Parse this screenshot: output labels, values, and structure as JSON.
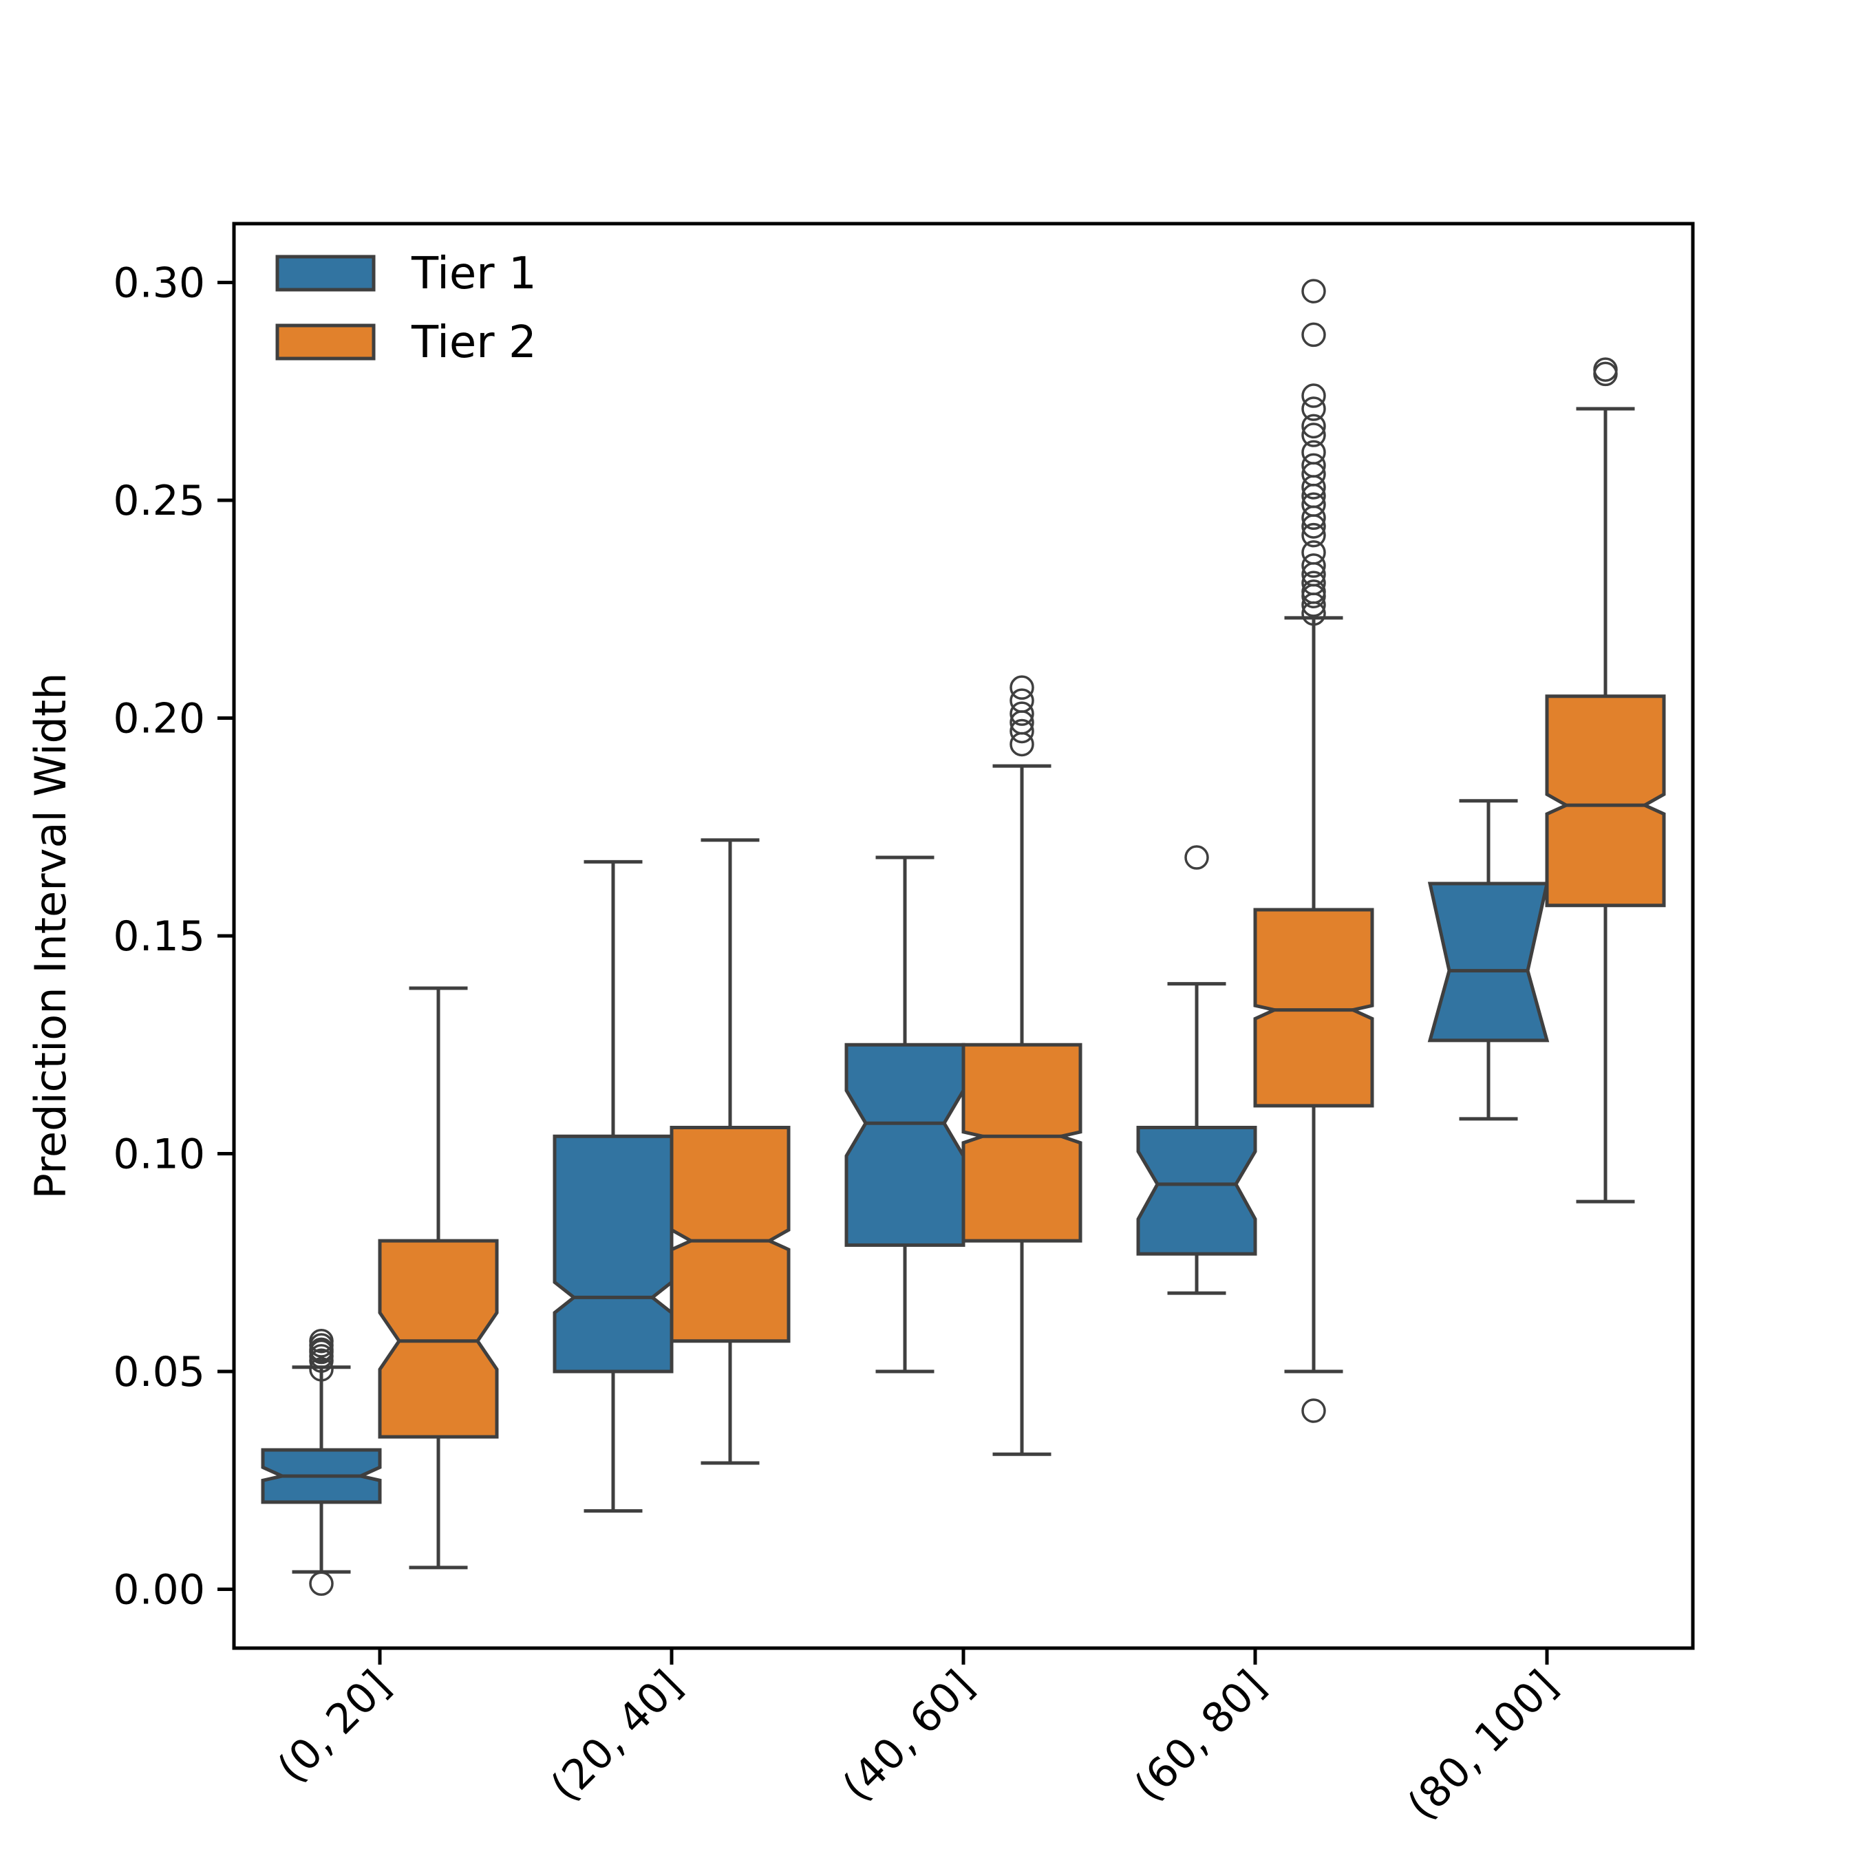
{
  "chart_data": {
    "type": "box",
    "notched": true,
    "title": "",
    "xlabel": "",
    "ylabel": "Prediction Interval Width",
    "ylim": [
      -0.0135,
      0.3135
    ],
    "yticks": [
      "0.00",
      "0.05",
      "0.10",
      "0.15",
      "0.20",
      "0.25",
      "0.30"
    ],
    "categories": [
      "(0, 20]",
      "(20, 40]",
      "(40, 60]",
      "(60, 80]",
      "(80, 100]"
    ],
    "legend_position": "top-left",
    "grid": false,
    "series": [
      {
        "name": "Tier 1",
        "color": "#3274a1",
        "boxes": [
          {
            "whisker_low": 0.004,
            "q1": 0.02,
            "notch_low": 0.025,
            "median": 0.026,
            "notch_high": 0.028,
            "q3": 0.032,
            "whisker_high": 0.051,
            "outliers": [
              0.0013,
              0.0505,
              0.0525,
              0.0535,
              0.0545,
              0.055,
              0.056,
              0.057
            ]
          },
          {
            "whisker_low": 0.018,
            "q1": 0.05,
            "notch_low": 0.0635,
            "median": 0.067,
            "notch_high": 0.0705,
            "q3": 0.104,
            "whisker_high": 0.167,
            "outliers": []
          },
          {
            "whisker_low": 0.05,
            "q1": 0.079,
            "notch_low": 0.0995,
            "median": 0.107,
            "notch_high": 0.1145,
            "q3": 0.125,
            "whisker_high": 0.168,
            "outliers": []
          },
          {
            "whisker_low": 0.068,
            "q1": 0.077,
            "notch_low": 0.085,
            "median": 0.093,
            "notch_high": 0.1005,
            "q3": 0.106,
            "whisker_high": 0.139,
            "outliers": [
              0.168
            ]
          },
          {
            "whisker_low": 0.108,
            "q1": 0.126,
            "notch_low": 0.126,
            "median": 0.142,
            "notch_high": 0.162,
            "q3": 0.162,
            "whisker_high": 0.181,
            "outliers": []
          }
        ]
      },
      {
        "name": "Tier 2",
        "color": "#e1812c",
        "boxes": [
          {
            "whisker_low": 0.005,
            "q1": 0.035,
            "notch_low": 0.0505,
            "median": 0.057,
            "notch_high": 0.0635,
            "q3": 0.08,
            "whisker_high": 0.138,
            "outliers": []
          },
          {
            "whisker_low": 0.029,
            "q1": 0.057,
            "notch_low": 0.078,
            "median": 0.08,
            "notch_high": 0.0825,
            "q3": 0.106,
            "whisker_high": 0.172,
            "outliers": []
          },
          {
            "whisker_low": 0.031,
            "q1": 0.08,
            "notch_low": 0.1025,
            "median": 0.104,
            "notch_high": 0.105,
            "q3": 0.125,
            "whisker_high": 0.189,
            "outliers": [
              0.194,
              0.197,
              0.199,
              0.201,
              0.204,
              0.207
            ]
          },
          {
            "whisker_low": 0.05,
            "q1": 0.111,
            "notch_low": 0.131,
            "median": 0.133,
            "notch_high": 0.134,
            "q3": 0.156,
            "whisker_high": 0.223,
            "outliers": [
              0.041,
              0.224,
              0.226,
              0.228,
              0.229,
              0.231,
              0.233,
              0.235,
              0.238,
              0.242,
              0.244,
              0.246,
              0.249,
              0.251,
              0.253,
              0.256,
              0.258,
              0.261,
              0.265,
              0.267,
              0.271,
              0.274,
              0.288,
              0.298
            ]
          },
          {
            "whisker_low": 0.089,
            "q1": 0.157,
            "notch_low": 0.178,
            "median": 0.18,
            "notch_high": 0.1825,
            "q3": 0.205,
            "whisker_high": 0.271,
            "outliers": [
              0.279,
              0.28
            ]
          }
        ]
      }
    ]
  }
}
